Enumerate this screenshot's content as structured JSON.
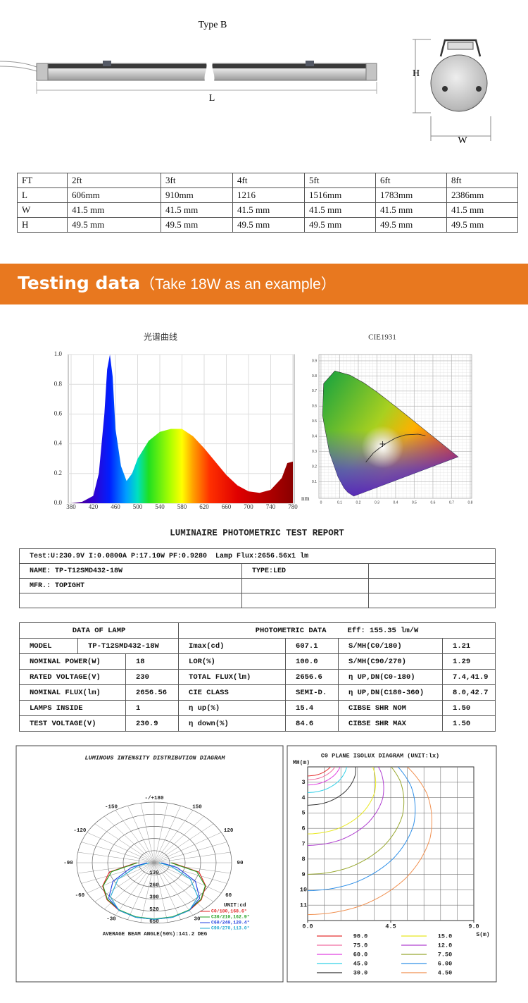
{
  "drawing": {
    "title": "Type  B",
    "length": "L",
    "height": "H",
    "width": "W"
  },
  "dimensions": {
    "rows": [
      [
        "FT",
        "2ft",
        "3ft",
        "4ft",
        "5ft",
        "6ft",
        "8ft"
      ],
      [
        "L",
        "606mm",
        "910mm",
        "1216",
        "1516mm",
        "1783mm",
        "2386mm"
      ],
      [
        "W",
        "41.5 mm",
        "41.5 mm",
        "41.5 mm",
        "41.5 mm",
        "41.5 mm",
        "41.5 mm"
      ],
      [
        "H",
        "49.5 mm",
        "49.5 mm",
        "49.5 mm",
        "49.5 mm",
        "49.5 mm",
        "49.5 mm"
      ]
    ]
  },
  "banner": {
    "title": "Testing data",
    "subtitle": "（Take 18W as an example）"
  },
  "spectrum": {
    "type": "area",
    "title": "光谱曲线",
    "x": [
      380,
      400,
      420,
      430,
      440,
      445,
      450,
      455,
      460,
      470,
      480,
      490,
      500,
      520,
      540,
      560,
      580,
      600,
      620,
      640,
      660,
      680,
      700,
      720,
      740,
      760,
      770,
      780
    ],
    "values": [
      0,
      0.01,
      0.05,
      0.2,
      0.6,
      0.9,
      1.0,
      0.85,
      0.5,
      0.25,
      0.15,
      0.2,
      0.3,
      0.42,
      0.48,
      0.5,
      0.5,
      0.45,
      0.37,
      0.28,
      0.19,
      0.12,
      0.08,
      0.07,
      0.09,
      0.17,
      0.27,
      0.28
    ],
    "xlim": [
      380,
      780
    ],
    "ylim": [
      0,
      1
    ],
    "xticks": [
      380,
      420,
      460,
      500,
      540,
      580,
      620,
      660,
      700,
      740,
      780
    ],
    "yticks": [
      {
        "value": 0,
        "label": "0.0"
      },
      0.2,
      0.4,
      0.6,
      0.8,
      {
        "value": 1,
        "label": "1.0"
      }
    ],
    "x_unit": "nm",
    "grid": true
  },
  "cie": {
    "title": "CIE1931",
    "xlim": [
      0,
      0.8
    ],
    "ylim": [
      0,
      0.9
    ],
    "xticks": [
      0,
      0.1,
      0.2,
      0.3,
      0.4,
      0.5,
      0.6,
      0.7,
      0.8
    ],
    "yticks": [
      0.1,
      0.2,
      0.3,
      0.4,
      0.5,
      0.6,
      0.7,
      0.8,
      0.9
    ]
  },
  "report": {
    "title": "LUMINAIRE PHOTOMETRIC TEST REPORT",
    "test_line": "Test:U:230.9V I:0.0800A P:17.10W PF:0.9280  Lamp Flux:2656.56x1 lm",
    "name": "NAME: TP-T12SMD432-18W",
    "type": "TYPE:LED",
    "mfr": "MFR.: TOPIGHT"
  },
  "lamp_data": {
    "header_left": "DATA OF LAMP",
    "header_right": "PHOTOMETRIC DATA",
    "efficiency": "Eff: 155.35 lm/W",
    "rows": [
      [
        "MODEL",
        "TP-T12SMD432-18W",
        "Imax(cd)",
        "607.1",
        "S/MH(C0/180)",
        "1.21"
      ],
      [
        "NOMINAL POWER(W)",
        "18",
        "LOR(%)",
        "100.0",
        "S/MH(C90/270)",
        "1.29"
      ],
      [
        "RATED VOLTAGE(V)",
        "230",
        "TOTAL FLUX(lm)",
        "2656.6",
        "η UP,DN(C0-180)",
        "7.4,41.9"
      ],
      [
        "NOMINAL FLUX(lm)",
        "2656.56",
        "CIE CLASS",
        "SEMI-D.",
        "η UP,DN(C180-360)",
        "8.0,42.7"
      ],
      [
        "LAMPS INSIDE",
        "1",
        "η up(%)",
        "15.4",
        "CIBSE SHR NOM",
        "1.50"
      ],
      [
        "TEST VOLTAGE(V)",
        "230.9",
        "η down(%)",
        "84.6",
        "CIBSE SHR MAX",
        "1.50"
      ]
    ]
  },
  "polar": {
    "type": "polar",
    "title": "LUMINOUS INTENSITY DISTRIBUTION DIAGRAM",
    "angle_ticks": [
      {
        "value": 180,
        "label": "-/+180"
      },
      -150,
      150,
      -120,
      120,
      -90,
      90,
      -60,
      60,
      -30,
      30
    ],
    "rlim": [
      0,
      650
    ],
    "rticks": [
      130,
      260,
      390,
      520,
      650
    ],
    "unit": "UNIT:cd",
    "angles": [
      -90,
      -75,
      -60,
      -45,
      -30,
      -15,
      0,
      15,
      30,
      45,
      60,
      75,
      90
    ],
    "series": [
      {
        "name": "C0/180,168.6°",
        "color": "#e02020",
        "values": [
          150,
          390,
          500,
          560,
          590,
          605,
          607,
          605,
          590,
          560,
          500,
          390,
          150
        ]
      },
      {
        "name": "C30/210,162.9°",
        "color": "#20a020",
        "values": [
          140,
          370,
          495,
          555,
          585,
          600,
          603,
          600,
          585,
          555,
          495,
          370,
          140
        ]
      },
      {
        "name": "C60/240,120.4°",
        "color": "#2040e0",
        "values": [
          60,
          200,
          400,
          540,
          590,
          605,
          607,
          605,
          590,
          540,
          400,
          200,
          60
        ]
      },
      {
        "name": "C90/270,113.0°",
        "color": "#20a8d0",
        "values": [
          40,
          150,
          350,
          520,
          590,
          605,
          607,
          605,
          590,
          520,
          350,
          150,
          40
        ]
      }
    ],
    "footer": "AVERAGE BEAM ANGLE(50%):141.2 DEG"
  },
  "isolux": {
    "type": "contour",
    "title": "C0 PLANE ISOLUX DIAGRAM (UNIT:lx)",
    "y_label": "MH(m)",
    "x_label": "S(m)",
    "xlim": [
      0,
      9
    ],
    "ylim": [
      2,
      12
    ],
    "xticks": [
      {
        "value": 0,
        "label": "0.0"
      },
      4.5,
      {
        "value": 9,
        "label": "9.0"
      }
    ],
    "yticks": [
      3,
      4,
      5,
      6,
      7,
      8,
      9,
      10,
      11
    ],
    "levels": [
      {
        "value": 90,
        "label": "90.0",
        "color": "#e53030"
      },
      {
        "value": 75,
        "label": "75.0",
        "color": "#f06ca0"
      },
      {
        "value": 60,
        "label": "60.0",
        "color": "#e040e0"
      },
      {
        "value": 45,
        "label": "45.0",
        "color": "#30d0e8"
      },
      {
        "value": 30,
        "label": "30.0",
        "color": "#333333"
      },
      {
        "value": 15,
        "label": "15.0",
        "color": "#e8e820"
      },
      {
        "value": 12,
        "label": "12.0",
        "color": "#b040d0"
      },
      {
        "value": 7.5,
        "label": "7.50",
        "color": "#98a830"
      },
      {
        "value": 6,
        "label": "6.00",
        "color": "#3090e8"
      },
      {
        "value": 4.5,
        "label": "4.50",
        "color": "#f09050"
      }
    ]
  }
}
